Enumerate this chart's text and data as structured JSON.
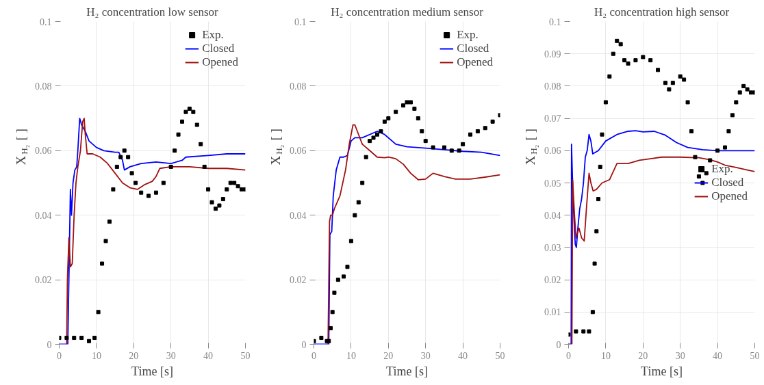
{
  "chart_data": [
    {
      "type": "line",
      "title": "H₂ concentration low sensor",
      "xlabel": "Time [s]",
      "ylabel": "X$_{H₂}$ [ ]",
      "xlim": [
        0,
        50
      ],
      "ylim": [
        0,
        0.1
      ],
      "xticks": [
        0,
        10,
        20,
        30,
        40,
        50
      ],
      "yticks": [
        0,
        0.02,
        0.04,
        0.06,
        0.08,
        0.1
      ],
      "grid": true,
      "legend": "top right",
      "series": [
        {
          "name": "Exp.",
          "type": "scatter",
          "marker": "square",
          "color": "#000000",
          "x": [
            0,
            2,
            4,
            6,
            8,
            9.5,
            10.5,
            11.5,
            12.5,
            13.5,
            14.5,
            15.5,
            16.5,
            17.5,
            18.5,
            19.5,
            20.5,
            22,
            24,
            26,
            28,
            30,
            31,
            32,
            33,
            34,
            35,
            36,
            37,
            38,
            39,
            40,
            41,
            42,
            43,
            44,
            45,
            46,
            47,
            48,
            49,
            50
          ],
          "values": [
            0.002,
            0.002,
            0.002,
            0.002,
            0.001,
            0.002,
            0.01,
            0.025,
            0.032,
            0.038,
            0.048,
            0.055,
            0.058,
            0.06,
            0.058,
            0.053,
            0.05,
            0.047,
            0.046,
            0.047,
            0.05,
            0.055,
            0.06,
            0.065,
            0.069,
            0.072,
            0.073,
            0.072,
            0.068,
            0.062,
            0.055,
            0.048,
            0.044,
            0.042,
            0.043,
            0.045,
            0.048,
            0.05,
            0.05,
            0.049,
            0.048,
            0.048
          ]
        },
        {
          "name": "Closed",
          "color": "#0000ff",
          "x": [
            0,
            2.3,
            2.6,
            3,
            3.3,
            3.7,
            4.2,
            4.7,
            5,
            5.5,
            6,
            7,
            8,
            10,
            12,
            15,
            16,
            17,
            17.5,
            19,
            22,
            26,
            30,
            33,
            34,
            40,
            45,
            50
          ],
          "values": [
            0,
            0,
            0.02,
            0.048,
            0.04,
            0.05,
            0.054,
            0.055,
            0.06,
            0.07,
            0.068,
            0.066,
            0.063,
            0.061,
            0.06,
            0.0595,
            0.0595,
            0.057,
            0.054,
            0.055,
            0.056,
            0.0565,
            0.056,
            0.057,
            0.058,
            0.0585,
            0.059,
            0.059
          ]
        },
        {
          "name": "Opened",
          "color": "#a01010",
          "x": [
            2,
            2.2,
            2.6,
            3,
            3.5,
            4,
            4.5,
            5,
            5.7,
            6.3,
            6.7,
            7,
            7.5,
            9,
            11,
            13,
            15,
            17,
            19,
            21,
            23,
            25,
            26,
            27,
            30,
            35,
            40,
            45,
            50
          ],
          "values": [
            0,
            0.02,
            0.033,
            0.024,
            0.025,
            0.04,
            0.05,
            0.055,
            0.06,
            0.069,
            0.07,
            0.065,
            0.059,
            0.059,
            0.058,
            0.056,
            0.053,
            0.05,
            0.0485,
            0.048,
            0.0495,
            0.0505,
            0.052,
            0.0545,
            0.055,
            0.055,
            0.0545,
            0.0545,
            0.054
          ]
        }
      ]
    },
    {
      "type": "line",
      "title": "H₂ concentration medium sensor",
      "xlabel": "Time [s]",
      "ylabel": "X$_{H₂}$ [ ]",
      "xlim": [
        0,
        50
      ],
      "ylim": [
        0,
        0.1
      ],
      "xticks": [
        0,
        10,
        20,
        30,
        40,
        50
      ],
      "yticks": [
        0,
        0.02,
        0.04,
        0.06,
        0.08,
        0.1
      ],
      "grid": true,
      "legend": "top right",
      "series": [
        {
          "name": "Exp.",
          "type": "scatter",
          "marker": "square",
          "color": "#000000",
          "x": [
            0,
            2,
            3.5,
            4,
            4.5,
            5,
            5.5,
            6.5,
            8,
            9,
            10,
            11,
            12,
            13,
            14,
            15,
            16,
            17,
            18,
            19,
            20,
            22,
            24,
            25,
            26,
            27,
            28,
            29,
            30,
            32,
            35,
            37,
            39,
            40,
            42,
            44,
            46,
            48,
            50
          ],
          "values": [
            0.001,
            0.002,
            0.001,
            0.001,
            0.005,
            0.01,
            0.016,
            0.02,
            0.021,
            0.024,
            0.032,
            0.04,
            0.044,
            0.05,
            0.058,
            0.063,
            0.064,
            0.065,
            0.066,
            0.069,
            0.07,
            0.072,
            0.074,
            0.075,
            0.075,
            0.073,
            0.07,
            0.066,
            0.063,
            0.061,
            0.061,
            0.06,
            0.06,
            0.062,
            0.065,
            0.066,
            0.067,
            0.069,
            0.071
          ]
        },
        {
          "name": "Closed",
          "color": "#0000ff",
          "x": [
            0,
            4,
            4.3,
            4.8,
            5.2,
            6,
            7,
            8,
            9,
            10,
            11,
            13,
            17,
            19,
            22,
            25,
            30,
            35,
            40,
            45,
            50
          ],
          "values": [
            0,
            0,
            0.034,
            0.035,
            0.046,
            0.054,
            0.058,
            0.058,
            0.0585,
            0.063,
            0.064,
            0.064,
            0.066,
            0.065,
            0.062,
            0.0612,
            0.0608,
            0.0603,
            0.0598,
            0.0595,
            0.0585
          ]
        },
        {
          "name": "Opened",
          "color": "#a01010",
          "x": [
            3.8,
            4.2,
            4.5,
            5,
            5.5,
            7,
            8.5,
            9.5,
            10.5,
            11,
            12,
            13,
            15,
            17,
            19,
            20,
            22,
            24,
            26,
            28,
            30,
            32,
            35,
            38,
            42,
            46,
            50
          ],
          "values": [
            0,
            0.038,
            0.04,
            0.04,
            0.042,
            0.046,
            0.054,
            0.062,
            0.068,
            0.068,
            0.065,
            0.062,
            0.06,
            0.058,
            0.0578,
            0.058,
            0.0575,
            0.0558,
            0.053,
            0.051,
            0.0512,
            0.053,
            0.052,
            0.0512,
            0.0512,
            0.0518,
            0.0525
          ]
        }
      ]
    },
    {
      "type": "line",
      "title": "H₂ concentration high sensor",
      "xlabel": "Time [s]",
      "ylabel": "X$_{H₂}$ [ ]",
      "xlim": [
        0,
        50
      ],
      "ylim": [
        0,
        0.1
      ],
      "xticks": [
        0,
        10,
        20,
        30,
        40,
        50
      ],
      "yticks": [
        0,
        0.01,
        0.02,
        0.03,
        0.04,
        0.05,
        0.06,
        0.07,
        0.08,
        0.09,
        0.1
      ],
      "grid": true,
      "legend": "right",
      "series": [
        {
          "name": "Exp.",
          "type": "scatter",
          "marker": "square",
          "color": "#000000",
          "x": [
            0,
            2,
            4,
            5.5,
            6.5,
            7,
            7.5,
            8,
            8.5,
            9,
            10,
            11,
            12,
            13,
            14,
            15,
            16,
            18,
            20,
            22,
            24,
            26,
            27,
            28,
            30,
            31,
            32,
            33,
            34,
            35,
            36,
            37,
            38,
            40,
            42,
            43,
            44,
            45,
            46,
            47,
            48,
            49,
            50
          ],
          "values": [
            0.003,
            0.004,
            0.004,
            0.004,
            0.01,
            0.025,
            0.035,
            0.045,
            0.055,
            0.065,
            0.075,
            0.083,
            0.09,
            0.094,
            0.093,
            0.088,
            0.087,
            0.088,
            0.089,
            0.088,
            0.085,
            0.081,
            0.079,
            0.081,
            0.083,
            0.082,
            0.075,
            0.066,
            0.058,
            0.052,
            0.05,
            0.053,
            0.057,
            0.06,
            0.061,
            0.066,
            0.071,
            0.075,
            0.078,
            0.08,
            0.079,
            0.078,
            0.078
          ]
        },
        {
          "name": "Closed",
          "color": "#0000ff",
          "x": [
            0,
            0.7,
            0.8,
            1.2,
            1.8,
            2.1,
            2.5,
            3,
            3.5,
            4,
            4.5,
            5,
            5.5,
            6,
            6.5,
            8,
            10,
            13,
            16,
            18,
            20,
            23,
            26,
            29,
            32,
            36,
            40,
            45,
            50
          ],
          "values": [
            0,
            0,
            0.062,
            0.045,
            0.031,
            0.03,
            0.036,
            0.042,
            0.045,
            0.05,
            0.058,
            0.06,
            0.065,
            0.063,
            0.059,
            0.06,
            0.063,
            0.065,
            0.066,
            0.0662,
            0.0658,
            0.066,
            0.0648,
            0.0625,
            0.061,
            0.0603,
            0.06,
            0.06,
            0.06
          ]
        },
        {
          "name": "Opened",
          "color": "#a01010",
          "x": [
            0.9,
            1.1,
            1.6,
            2,
            2.8,
            3.5,
            4.2,
            4.8,
            5.5,
            6,
            6.6,
            7.5,
            9,
            11,
            13,
            16,
            19,
            22,
            25,
            30,
            35,
            38,
            40,
            42,
            45,
            48,
            50
          ],
          "values": [
            0,
            0.051,
            0.04,
            0.033,
            0.036,
            0.033,
            0.032,
            0.042,
            0.053,
            0.05,
            0.0475,
            0.048,
            0.05,
            0.051,
            0.056,
            0.056,
            0.057,
            0.0575,
            0.058,
            0.058,
            0.0578,
            0.0572,
            0.0565,
            0.0555,
            0.0548,
            0.054,
            0.0535
          ]
        }
      ]
    }
  ]
}
